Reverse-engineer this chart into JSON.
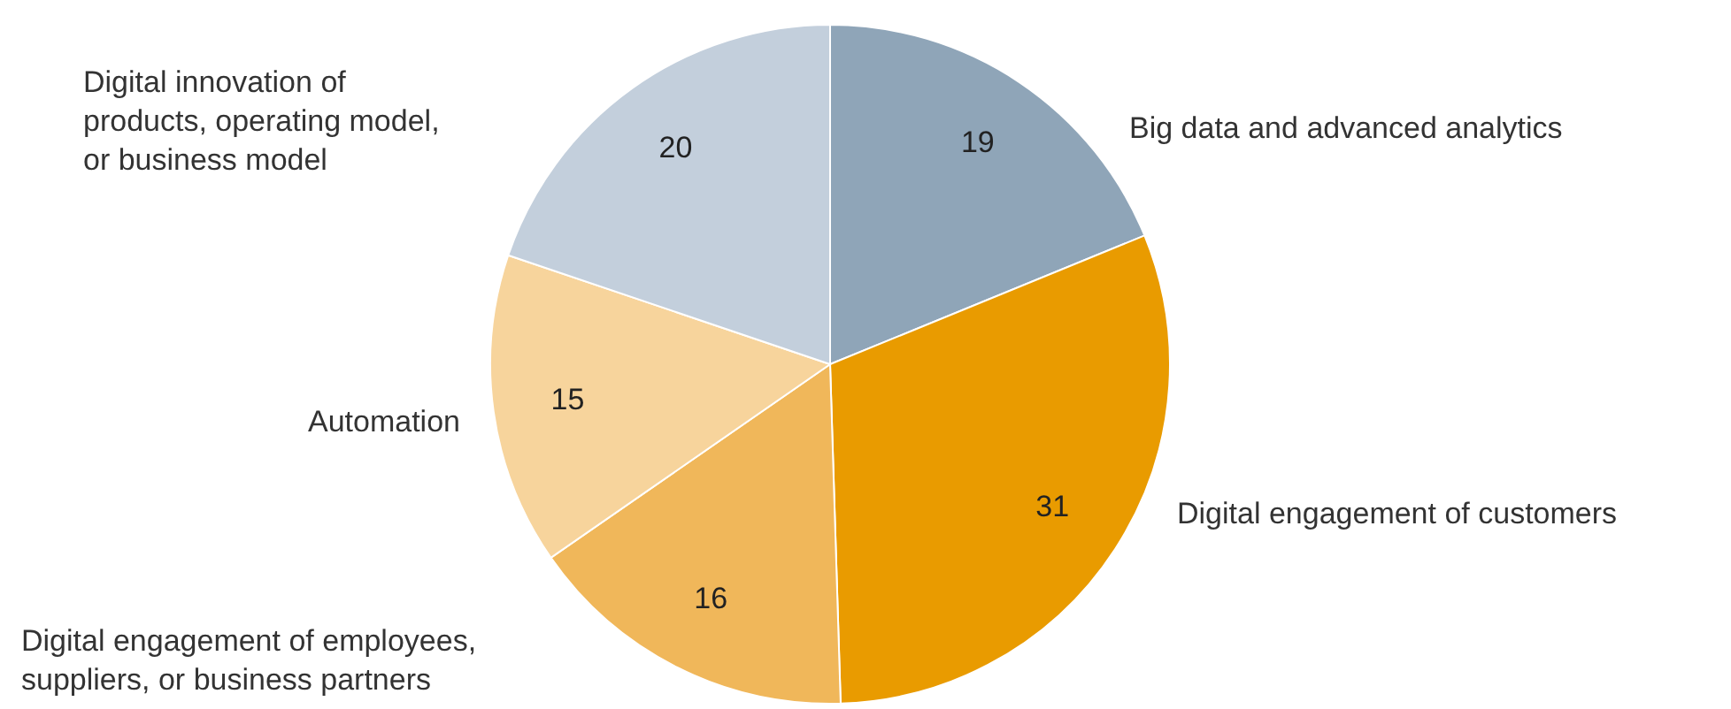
{
  "chart_data": {
    "type": "pie",
    "categories": [
      "Big data and advanced analytics",
      "Digital engagement of customers",
      "Digital engagement of employees, suppliers, or business partners",
      "Automation",
      "Digital innovation of products, operating model, or business model"
    ],
    "values": [
      19,
      31,
      16,
      15,
      20
    ],
    "colors": [
      "#8fa5b8",
      "#e99b00",
      "#f0b75a",
      "#f7d49c",
      "#c3cfdc"
    ],
    "data_labels": true
  }
}
